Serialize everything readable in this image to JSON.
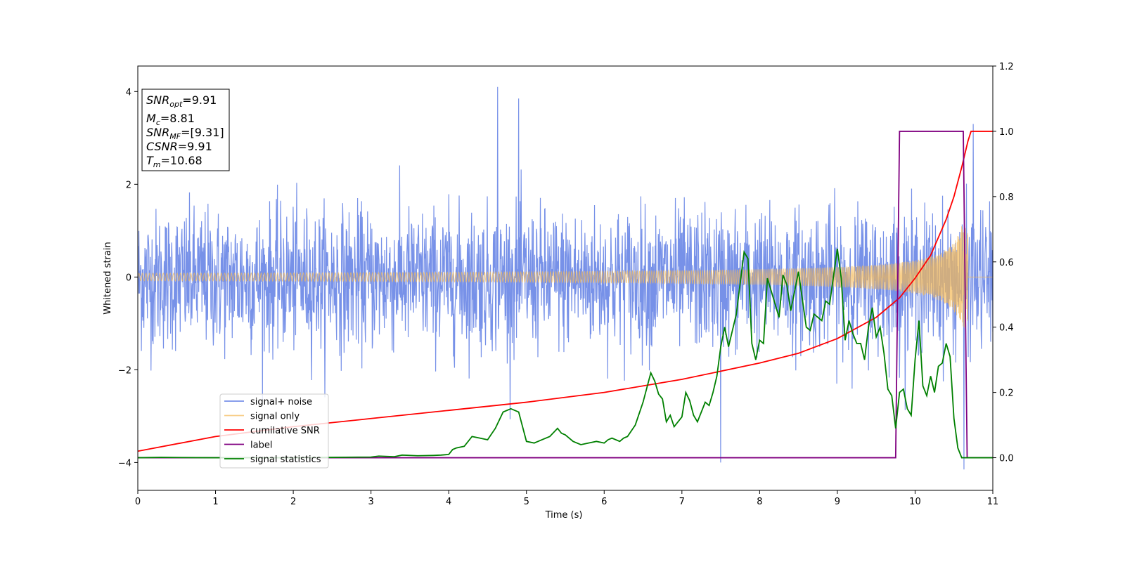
{
  "chart_data": {
    "type": "line",
    "xlabel": "Time (s)",
    "ylabel": "Whitened strain",
    "xlim": [
      0,
      11
    ],
    "ylim_left": [
      -4.6,
      4.55
    ],
    "ylim_right": [
      -0.1,
      1.2
    ],
    "x_ticks": [
      "0",
      "1",
      "2",
      "3",
      "4",
      "5",
      "6",
      "7",
      "8",
      "9",
      "10",
      "11"
    ],
    "y_ticks_left": [
      "4",
      "2",
      "0",
      "−2",
      "−4"
    ],
    "y_ticks_right": [
      "1.2",
      "1.0",
      "0.8",
      "0.6",
      "0.4",
      "0.2",
      "0.0"
    ],
    "info_box": {
      "snr_opt": {
        "base": "SNR",
        "sub": "opt",
        "value": "=9.91"
      },
      "mc": {
        "base": "M",
        "sub": "c",
        "value": "=8.81"
      },
      "snr_mf": {
        "base": "SNR",
        "sub": "MF",
        "value": "=[9.31]"
      },
      "csnr": {
        "base": "CSNR",
        "value": "=9.91"
      },
      "tm": {
        "base": "T",
        "sub": "m",
        "value": "=10.68"
      }
    },
    "legend": {
      "placement": "lower-left",
      "entries": [
        "signal+ noise",
        "signal only",
        "cumilative SNR",
        "label",
        "signal statistics"
      ]
    },
    "series": [
      {
        "name": "signal+ noise",
        "axis": "left",
        "color": "#6b88e6",
        "kind": "noise",
        "duration": 11,
        "center": -0.05,
        "std": 0.75,
        "notable_peaks": [
          [
            4.63,
            4.1
          ],
          [
            4.9,
            3.85
          ],
          [
            7.5,
            -4.0
          ],
          [
            10.63,
            -4.15
          ],
          [
            10.75,
            3.3
          ]
        ]
      },
      {
        "name": "signal only",
        "axis": "left",
        "color": "#f5b955",
        "kind": "chirp",
        "t_merge": 10.68,
        "amp_start": 0.04,
        "amp_merge": 1.1
      },
      {
        "name": "cumilative SNR",
        "axis": "right",
        "color": "#ff0000",
        "x": [
          0,
          1,
          2,
          3,
          4,
          5,
          6,
          7,
          8,
          8.5,
          9,
          9.5,
          9.8,
          10.0,
          10.2,
          10.4,
          10.5,
          10.6,
          10.68,
          10.72,
          11
        ],
        "y": [
          0.02,
          0.065,
          0.095,
          0.12,
          0.145,
          0.17,
          0.2,
          0.24,
          0.29,
          0.32,
          0.365,
          0.43,
          0.49,
          0.55,
          0.62,
          0.73,
          0.8,
          0.89,
          0.97,
          1.0,
          1.0
        ]
      },
      {
        "name": "label",
        "axis": "right",
        "color": "#800080",
        "x": [
          0,
          9.75,
          9.8,
          10.62,
          10.67,
          11
        ],
        "y": [
          0,
          0,
          1,
          1,
          0,
          0
        ]
      },
      {
        "name": "signal statistics",
        "axis": "right",
        "color": "#008000",
        "x": [
          0,
          0.3,
          1,
          2,
          2.5,
          3,
          3.1,
          3.3,
          3.4,
          3.6,
          3.8,
          3.9,
          4.0,
          4.05,
          4.1,
          4.2,
          4.3,
          4.4,
          4.5,
          4.6,
          4.7,
          4.8,
          4.85,
          4.9,
          5.0,
          5.1,
          5.2,
          5.3,
          5.4,
          5.45,
          5.5,
          5.6,
          5.7,
          5.8,
          5.9,
          6.0,
          6.05,
          6.1,
          6.2,
          6.25,
          6.3,
          6.4,
          6.5,
          6.6,
          6.65,
          6.7,
          6.75,
          6.8,
          6.85,
          6.9,
          6.95,
          7.0,
          7.05,
          7.1,
          7.15,
          7.2,
          7.3,
          7.35,
          7.4,
          7.45,
          7.5,
          7.55,
          7.6,
          7.7,
          7.8,
          7.85,
          7.9,
          7.95,
          8.0,
          8.05,
          8.1,
          8.2,
          8.25,
          8.3,
          8.35,
          8.4,
          8.45,
          8.5,
          8.6,
          8.65,
          8.7,
          8.8,
          8.85,
          8.9,
          9.0,
          9.05,
          9.1,
          9.15,
          9.2,
          9.25,
          9.3,
          9.35,
          9.4,
          9.45,
          9.5,
          9.55,
          9.6,
          9.65,
          9.7,
          9.75,
          9.8,
          9.85,
          9.9,
          9.95,
          10.0,
          10.05,
          10.1,
          10.15,
          10.2,
          10.25,
          10.3,
          10.35,
          10.4,
          10.45,
          10.5,
          10.55,
          10.6,
          10.65,
          10.7,
          11
        ],
        "y": [
          0,
          0.001,
          0,
          0,
          0.001,
          0.002,
          0.005,
          0.003,
          0.008,
          0.006,
          0.007,
          0.008,
          0.01,
          0.025,
          0.03,
          0.035,
          0.065,
          0.06,
          0.055,
          0.09,
          0.14,
          0.15,
          0.145,
          0.14,
          0.05,
          0.045,
          0.055,
          0.065,
          0.09,
          0.075,
          0.07,
          0.05,
          0.04,
          0.045,
          0.05,
          0.045,
          0.055,
          0.06,
          0.05,
          0.06,
          0.065,
          0.1,
          0.17,
          0.26,
          0.235,
          0.195,
          0.18,
          0.11,
          0.13,
          0.095,
          0.11,
          0.125,
          0.2,
          0.175,
          0.13,
          0.11,
          0.17,
          0.16,
          0.2,
          0.25,
          0.34,
          0.4,
          0.34,
          0.44,
          0.63,
          0.61,
          0.35,
          0.3,
          0.36,
          0.35,
          0.55,
          0.47,
          0.43,
          0.56,
          0.53,
          0.45,
          0.51,
          0.57,
          0.4,
          0.39,
          0.44,
          0.42,
          0.48,
          0.47,
          0.64,
          0.55,
          0.36,
          0.42,
          0.38,
          0.35,
          0.35,
          0.3,
          0.4,
          0.46,
          0.37,
          0.4,
          0.32,
          0.21,
          0.19,
          0.09,
          0.2,
          0.21,
          0.15,
          0.13,
          0.3,
          0.42,
          0.22,
          0.19,
          0.25,
          0.2,
          0.28,
          0.29,
          0.35,
          0.31,
          0.12,
          0.03,
          0.0,
          0,
          0,
          0
        ]
      }
    ]
  }
}
